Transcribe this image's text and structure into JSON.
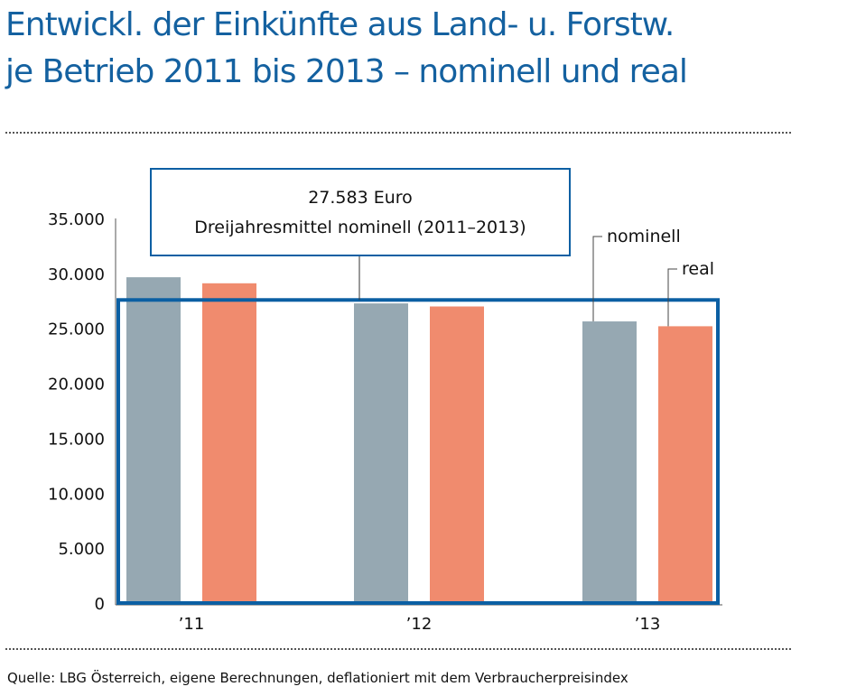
{
  "title": [
    "Entwickl. der Einkünfte aus Land- u. Forstw.",
    "je Betrieb 2011 bis 2013 – nominell und real"
  ],
  "source": "Quelle: LBG Österreich, eigene Berechnungen, deflationiert mit dem Verbraucherpreisindex",
  "chart_data": {
    "type": "bar",
    "categories": [
      "’11",
      "’12",
      "’13"
    ],
    "series": [
      {
        "name": "nominell",
        "values": [
          29650,
          27270,
          25630
        ],
        "color": "#96a8b2"
      },
      {
        "name": "real",
        "values": [
          29100,
          26990,
          25190
        ],
        "color": "#f08b6e"
      }
    ],
    "ylim": [
      0,
      35000
    ],
    "yticks": [
      "0",
      "5.000",
      "10.000",
      "15.000",
      "20.000",
      "25.000",
      "30.000",
      "35.000"
    ],
    "mean_line": {
      "value": 27583,
      "label": [
        "27.583 Euro",
        "Dreijahresmittel nominell (2011–2013)"
      ],
      "color": "#0b5fa3"
    },
    "grid": false
  }
}
